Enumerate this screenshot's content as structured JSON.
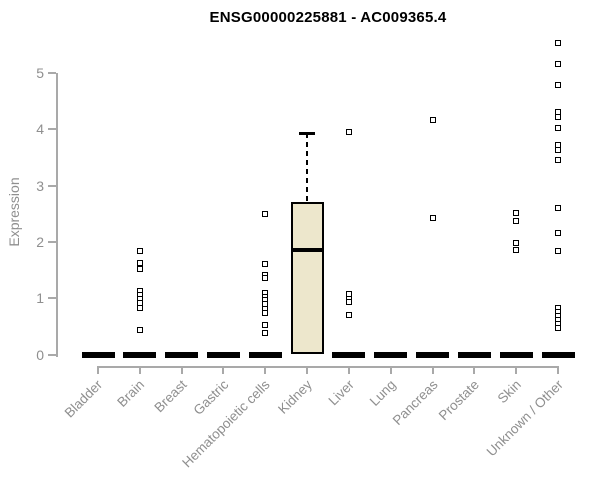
{
  "chart_data": {
    "type": "boxplot",
    "title": "ENSG00000225881 - AC009365.4",
    "xlabel": "",
    "ylabel": "Expression",
    "ylim": [
      0,
      5.6
    ],
    "yticks": [
      0,
      1,
      2,
      3,
      4,
      5
    ],
    "grid": false,
    "legend": "none",
    "marker": "open-square",
    "categories": [
      "Bladder",
      "Brain",
      "Breast",
      "Gastric",
      "Hematopoietic cells",
      "Kidney",
      "Liver",
      "Lung",
      "Pancreas",
      "Prostate",
      "Skin",
      "Unknown / Other"
    ],
    "boxes": [
      {
        "category": "Bladder",
        "q1": 0,
        "median": 0,
        "q3": 0,
        "whisker_low": 0,
        "whisker_high": 0,
        "outliers": []
      },
      {
        "category": "Brain",
        "q1": 0,
        "median": 0,
        "q3": 0,
        "whisker_low": 0,
        "whisker_high": 0,
        "outliers": [
          1.83,
          1.62,
          1.51,
          1.12,
          1.05,
          0.98,
          0.92,
          0.82,
          0.44
        ]
      },
      {
        "category": "Breast",
        "q1": 0,
        "median": 0,
        "q3": 0,
        "whisker_low": 0,
        "whisker_high": 0,
        "outliers": []
      },
      {
        "category": "Gastric",
        "q1": 0,
        "median": 0,
        "q3": 0,
        "whisker_low": 0,
        "whisker_high": 0,
        "outliers": []
      },
      {
        "category": "Hematopoietic cells",
        "q1": 0,
        "median": 0,
        "q3": 0,
        "whisker_low": 0,
        "whisker_high": 0,
        "outliers": [
          2.49,
          1.6,
          1.42,
          1.35,
          1.1,
          1.03,
          0.96,
          0.89,
          0.81,
          0.73,
          0.52,
          0.39
        ]
      },
      {
        "category": "Kidney",
        "q1": 0,
        "median": 1.85,
        "q3": 2.7,
        "whisker_low": 0,
        "whisker_high": 3.93,
        "outliers": []
      },
      {
        "category": "Liver",
        "q1": 0,
        "median": 0,
        "q3": 0,
        "whisker_low": 0,
        "whisker_high": 0,
        "outliers": [
          3.95,
          1.08,
          0.98,
          0.93,
          0.71
        ]
      },
      {
        "category": "Lung",
        "q1": 0,
        "median": 0,
        "q3": 0,
        "whisker_low": 0,
        "whisker_high": 0,
        "outliers": []
      },
      {
        "category": "Pancreas",
        "q1": 0,
        "median": 0,
        "q3": 0,
        "whisker_low": 0,
        "whisker_high": 0,
        "outliers": [
          4.16,
          2.42
        ]
      },
      {
        "category": "Prostate",
        "q1": 0,
        "median": 0,
        "q3": 0,
        "whisker_low": 0,
        "whisker_high": 0,
        "outliers": []
      },
      {
        "category": "Skin",
        "q1": 0,
        "median": 0,
        "q3": 0,
        "whisker_low": 0,
        "whisker_high": 0,
        "outliers": [
          2.51,
          2.37,
          1.98,
          1.85
        ]
      },
      {
        "category": "Unknown / Other",
        "q1": 0,
        "median": 0,
        "q3": 0,
        "whisker_low": 0,
        "whisker_high": 0,
        "outliers": [
          5.53,
          5.16,
          4.79,
          4.31,
          4.22,
          4.02,
          3.72,
          3.64,
          3.45,
          2.6,
          2.15,
          1.83,
          0.82,
          0.75,
          0.68,
          0.61,
          0.54,
          0.47
        ]
      }
    ],
    "colors": {
      "box_fill": "#EDE7CC",
      "box_border": "#000000",
      "median": "#000000",
      "zero_bar": "#000000",
      "outlier_border": "#000000",
      "outlier_fill": "#ffffff",
      "axis_line": "#A9A9A9",
      "axis_text": "#8F8F8F",
      "title_text": "#000000"
    }
  }
}
